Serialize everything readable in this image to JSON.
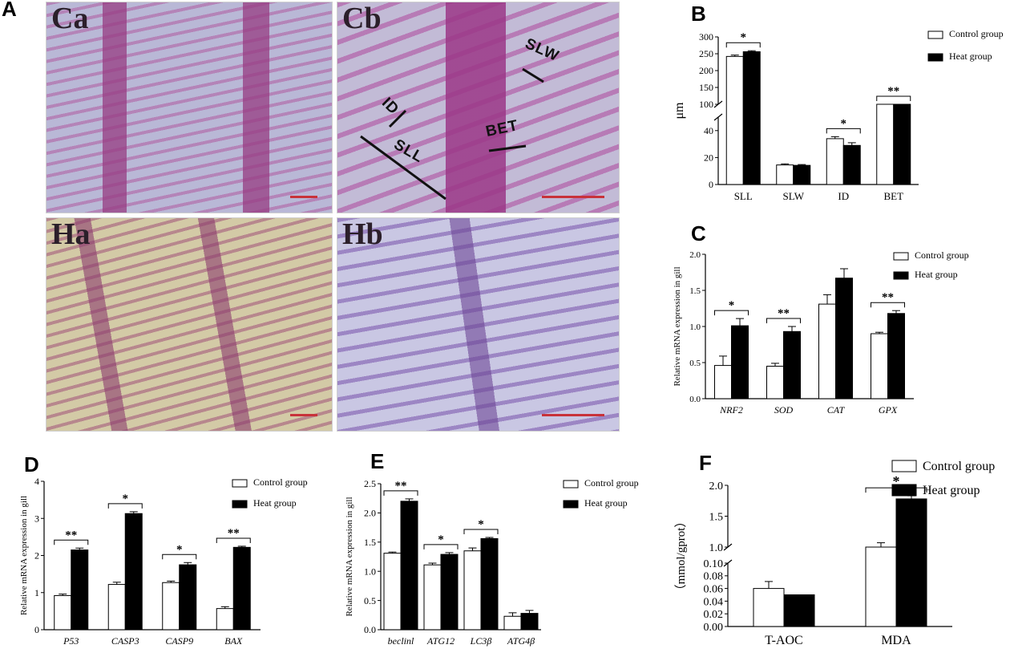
{
  "figure": {
    "panel_letters": [
      "A",
      "B",
      "C",
      "D",
      "E",
      "F"
    ],
    "micrographs": [
      {
        "label": "Ca"
      },
      {
        "label": "Cb",
        "annotations": [
          "SLW",
          "ID",
          "BET",
          "SLL"
        ]
      },
      {
        "label": "Ha"
      },
      {
        "label": "Hb"
      }
    ]
  },
  "chart_data": [
    {
      "id": "B",
      "type": "bar",
      "broken_axis": true,
      "ylabel": "μm",
      "categories": [
        "SLL",
        "SLW",
        "ID",
        "BET"
      ],
      "series": [
        {
          "name": "Control group",
          "values": [
            242,
            14.5,
            34,
            97
          ],
          "errors": [
            4,
            0.8,
            1.5,
            3
          ]
        },
        {
          "name": "Heat group",
          "values": [
            256,
            14.2,
            29,
            77
          ],
          "errors": [
            3,
            0.6,
            2,
            2
          ]
        }
      ],
      "ylim_lower": [
        0,
        50
      ],
      "ylim_upper": [
        100,
        300
      ],
      "yticks_lower": [
        "0",
        "20",
        "40"
      ],
      "yticks_upper": [
        "100",
        "150",
        "200",
        "250",
        "300"
      ],
      "significance": [
        "*",
        "",
        "*",
        "**"
      ],
      "legend": "top-right"
    },
    {
      "id": "C",
      "type": "bar",
      "ylabel": "Relative mRNA expression in gill",
      "categories": [
        "NRF2",
        "SOD",
        "CAT",
        "GPX"
      ],
      "series": [
        {
          "name": "Control group",
          "values": [
            0.46,
            0.45,
            1.31,
            0.9
          ],
          "errors": [
            0.13,
            0.04,
            0.13,
            0.02
          ]
        },
        {
          "name": "Heat group",
          "values": [
            1.01,
            0.93,
            1.67,
            1.18
          ],
          "errors": [
            0.1,
            0.07,
            0.13,
            0.04
          ]
        }
      ],
      "ylim": [
        0,
        2
      ],
      "yticks": [
        "0.0",
        "0.5",
        "1.0",
        "1.5",
        "2.0"
      ],
      "significance": [
        "*",
        "**",
        "",
        "**"
      ],
      "legend": "top-right"
    },
    {
      "id": "D",
      "type": "bar",
      "ylabel": "Relative mRNA expression in gill",
      "categories": [
        "P53",
        "CASP3",
        "CASP9",
        "BAX"
      ],
      "series": [
        {
          "name": "Control group",
          "values": [
            0.92,
            1.22,
            1.27,
            0.57
          ],
          "errors": [
            0.04,
            0.06,
            0.04,
            0.05
          ]
        },
        {
          "name": "Heat group",
          "values": [
            2.15,
            3.13,
            1.75,
            2.22
          ],
          "errors": [
            0.05,
            0.05,
            0.06,
            0.03
          ]
        }
      ],
      "ylim": [
        0,
        4
      ],
      "yticks": [
        "0",
        "1",
        "2",
        "3",
        "4"
      ],
      "significance": [
        "**",
        "*",
        "*",
        "**"
      ],
      "legend": "top-right"
    },
    {
      "id": "E",
      "type": "bar",
      "ylabel": "Relative mRNA expression in gill",
      "categories": [
        "beclinl",
        "ATG12",
        "LC3β",
        "ATG4β"
      ],
      "series": [
        {
          "name": "Control group",
          "values": [
            1.31,
            1.11,
            1.35,
            0.23
          ],
          "errors": [
            0.02,
            0.03,
            0.05,
            0.06
          ]
        },
        {
          "name": "Heat group",
          "values": [
            2.2,
            1.29,
            1.56,
            0.28
          ],
          "errors": [
            0.04,
            0.03,
            0.02,
            0.05
          ]
        }
      ],
      "ylim": [
        0,
        2.5
      ],
      "yticks": [
        "0.0",
        "0.5",
        "1.0",
        "1.5",
        "2.0",
        "2.5"
      ],
      "significance": [
        "**",
        "*",
        "*",
        ""
      ],
      "legend": "top-right"
    },
    {
      "id": "F",
      "type": "bar",
      "broken_axis": true,
      "ylabel": "（mmol/gprot）",
      "categories": [
        "T-AOC",
        "MDA"
      ],
      "series": [
        {
          "name": "Control group",
          "values": [
            0.06,
            1.0
          ],
          "errors": [
            0.011,
            0.07
          ]
        },
        {
          "name": "Heat group",
          "values": [
            0.05,
            1.78
          ],
          "errors": [
            0,
            0.05
          ]
        }
      ],
      "ylim_lower": [
        0,
        0.1
      ],
      "ylim_upper": [
        1.0,
        2.0
      ],
      "yticks_lower": [
        "0.00",
        "0.02",
        "0.04",
        "0.06",
        "0.08",
        "0.10"
      ],
      "yticks_upper": [
        "1.0",
        "1.5",
        "2.0"
      ],
      "significance": [
        "",
        "*"
      ],
      "legend": "top-right"
    }
  ]
}
